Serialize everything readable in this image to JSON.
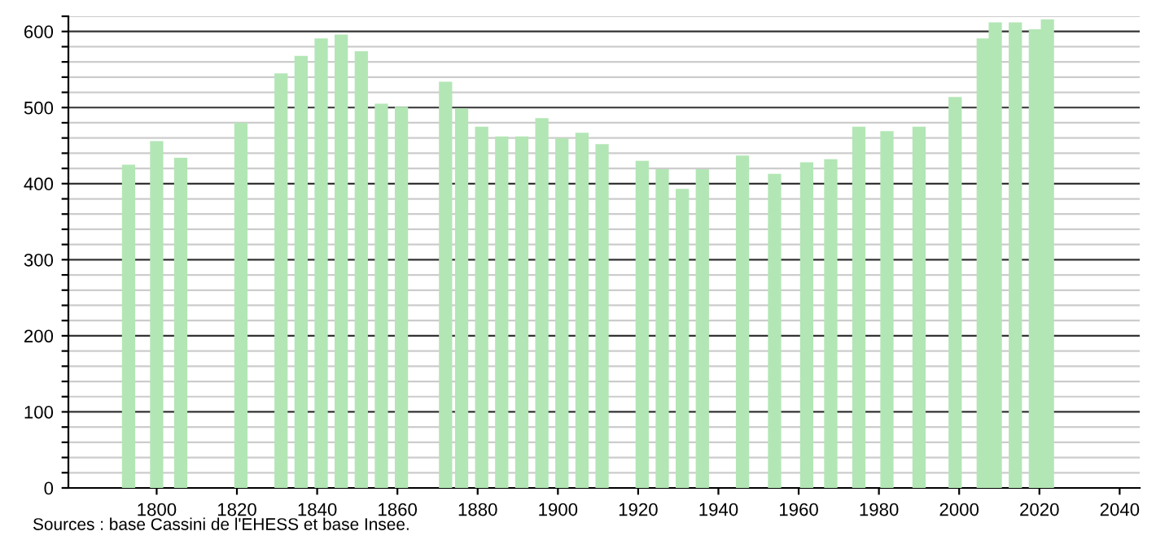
{
  "chart_data": {
    "type": "bar",
    "x": [
      1793,
      1800,
      1806,
      1821,
      1831,
      1836,
      1841,
      1846,
      1851,
      1856,
      1861,
      1872,
      1876,
      1881,
      1886,
      1891,
      1896,
      1901,
      1906,
      1911,
      1921,
      1926,
      1931,
      1936,
      1946,
      1954,
      1962,
      1968,
      1975,
      1982,
      1990,
      1999,
      2006,
      2009,
      2014,
      2019,
      2022
    ],
    "values": [
      425,
      456,
      434,
      480,
      545,
      568,
      591,
      596,
      574,
      505,
      501,
      534,
      499,
      475,
      462,
      462,
      486,
      460,
      467,
      452,
      430,
      419,
      393,
      419,
      437,
      413,
      428,
      432,
      475,
      469,
      475,
      514,
      591,
      612,
      612,
      603,
      616
    ],
    "color": "#b3e6b5",
    "xlim": [
      1778,
      2045
    ],
    "xticks": [
      1800,
      1820,
      1840,
      1860,
      1880,
      1900,
      1920,
      1940,
      1960,
      1980,
      2000,
      2020,
      2040
    ],
    "ylim": [
      0,
      620
    ],
    "yticks": [
      0,
      {
        "value": 20,
        "label": null
      },
      {
        "value": 40,
        "label": null
      },
      {
        "value": 60,
        "label": null
      },
      {
        "value": 80,
        "label": null
      },
      100,
      {
        "value": 120,
        "label": null
      },
      {
        "value": 140,
        "label": null
      },
      {
        "value": 160,
        "label": null
      },
      {
        "value": 180,
        "label": null
      },
      200,
      {
        "value": 220,
        "label": null
      },
      {
        "value": 240,
        "label": null
      },
      {
        "value": 260,
        "label": null
      },
      {
        "value": 280,
        "label": null
      },
      300,
      {
        "value": 320,
        "label": null
      },
      {
        "value": 340,
        "label": null
      },
      {
        "value": 360,
        "label": null
      },
      {
        "value": 380,
        "label": null
      },
      400,
      {
        "value": 420,
        "label": null
      },
      {
        "value": 440,
        "label": null
      },
      {
        "value": 460,
        "label": null
      },
      {
        "value": 480,
        "label": null
      },
      500,
      {
        "value": 520,
        "label": null
      },
      {
        "value": 540,
        "label": null
      },
      {
        "value": 560,
        "label": null
      },
      {
        "value": 580,
        "label": null
      },
      600,
      {
        "value": 620,
        "label": null
      }
    ],
    "grid": "y",
    "annotations": [
      "Sources : base Cassini de l'EHESS et base Insee."
    ]
  }
}
